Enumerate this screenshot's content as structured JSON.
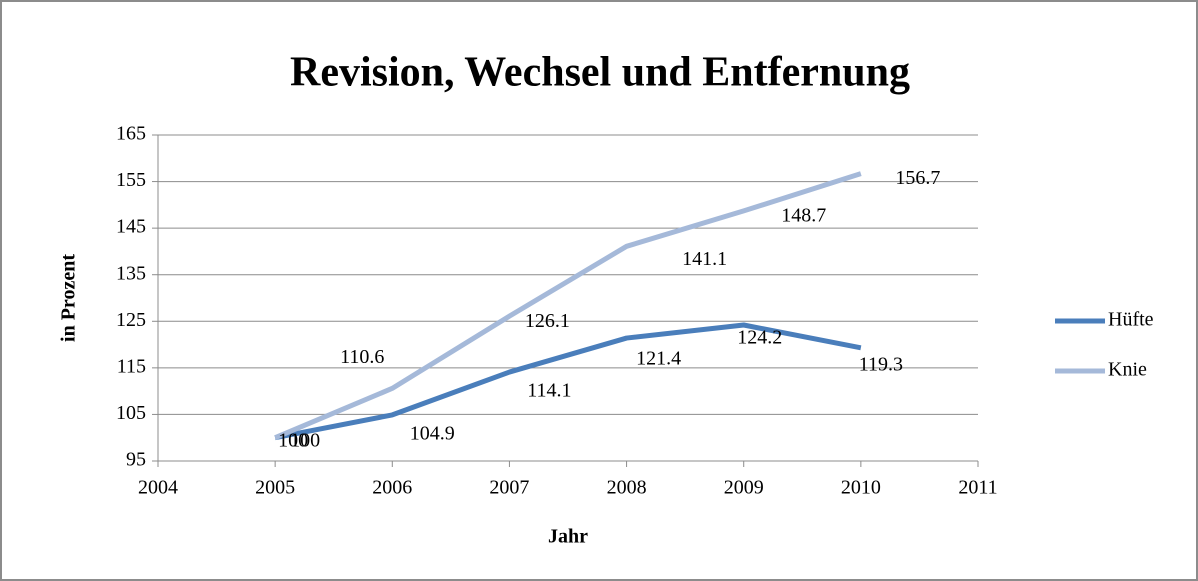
{
  "chart_data": {
    "type": "line",
    "title": "Revision, Wechsel und Entfernung",
    "x_label": "Jahr",
    "y_label": "in Prozent",
    "x": [
      2005,
      2006,
      2007,
      2008,
      2009,
      2010
    ],
    "series": [
      {
        "name": "Hüfte",
        "color": "#4a7ebb",
        "values": [
          100,
          104.9,
          114.1,
          121.4,
          124.2,
          119.3
        ]
      },
      {
        "name": "Knie",
        "color": "#a5b9d9",
        "values": [
          100,
          110.6,
          126.1,
          141.1,
          148.7,
          156.7
        ]
      }
    ],
    "xlim": [
      2004,
      2011
    ],
    "xticks": [
      2004,
      2005,
      2006,
      2007,
      2008,
      2009,
      2010,
      2011
    ],
    "ylim": [
      95,
      165
    ],
    "yticks": [
      95,
      105,
      115,
      125,
      135,
      145,
      155,
      165
    ],
    "grid": true,
    "legend": "right"
  }
}
